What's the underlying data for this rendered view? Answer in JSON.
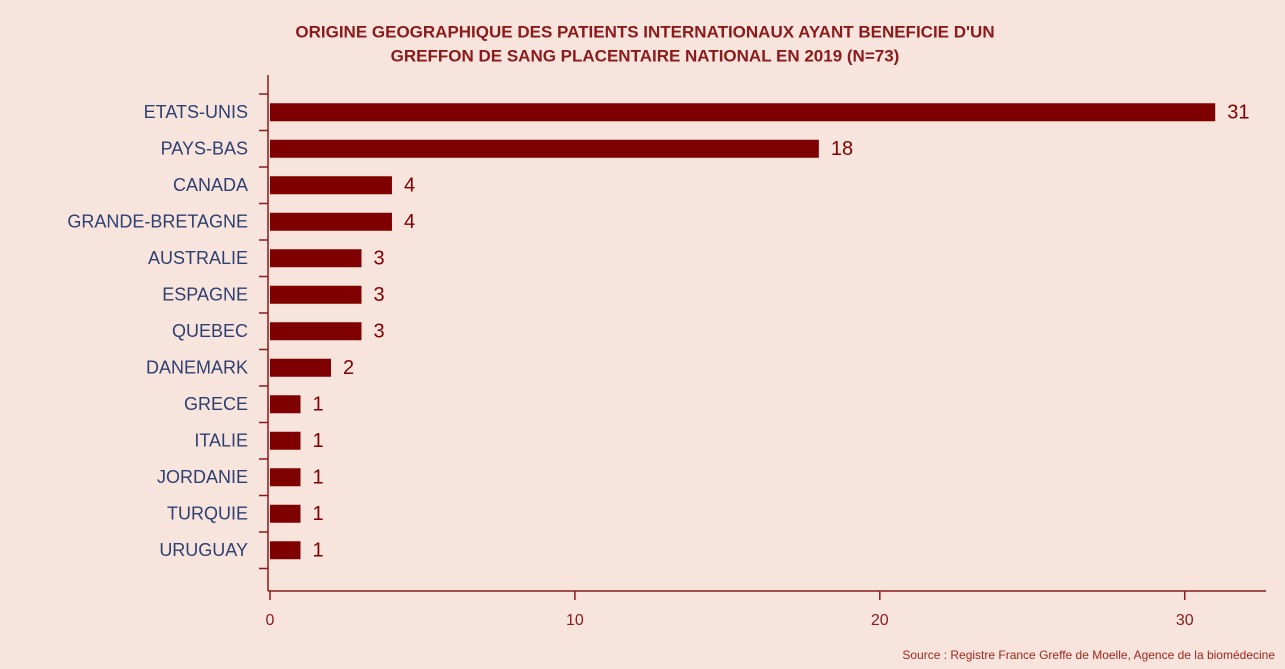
{
  "chart_data": {
    "type": "barh",
    "title": [
      "ORIGINE GEOGRAPHIQUE DES PATIENTS INTERNATIONAUX AYANT BENEFICIE D'UN",
      "GREFFON DE SANG PLACENTAIRE NATIONAL EN 2019 (N=73)"
    ],
    "categories": [
      "ETATS-UNIS",
      "PAYS-BAS",
      "CANADA",
      "GRANDE-BRETAGNE",
      "AUSTRALIE",
      "ESPAGNE",
      "QUEBEC",
      "DANEMARK",
      "GRECE",
      "ITALIE",
      "JORDANIE",
      "TURQUIE",
      "URUGUAY"
    ],
    "values": [
      31,
      18,
      4,
      4,
      3,
      3,
      3,
      2,
      1,
      1,
      1,
      1,
      1
    ],
    "color": "#7f0000",
    "xlim": [
      0,
      32.6
    ],
    "xticks": [
      0,
      10,
      20,
      30
    ],
    "source": "Source : Registre France Greffe de Moelle, Agence de la biomédecine"
  }
}
